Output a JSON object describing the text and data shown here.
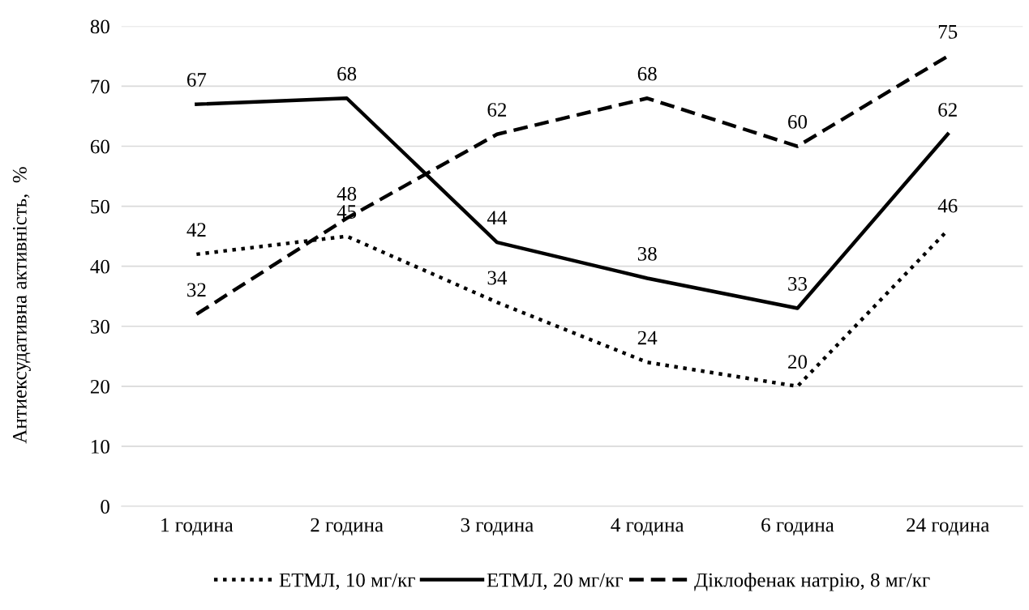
{
  "chart_data": {
    "type": "line",
    "ylabel": "Антиексудативна активність,  %",
    "categories": [
      "1 година",
      "2 година",
      "3 година",
      "4 година",
      "6 година",
      "24 година"
    ],
    "series": [
      {
        "name": "ЕТМЛ, 10 мг/кг",
        "color": "#000000",
        "line_style": "dotted",
        "values": [
          42,
          45,
          34,
          24,
          20,
          46
        ]
      },
      {
        "name": "ЕТМЛ, 20 мг/кг",
        "color": "#000000",
        "line_style": "solid",
        "values": [
          67,
          68,
          44,
          38,
          33,
          62
        ]
      },
      {
        "name": "Діклофенак натрію, 8 мг/кг",
        "color": "#000000",
        "line_style": "dashed",
        "values": [
          32,
          48,
          62,
          68,
          60,
          75
        ]
      }
    ],
    "ylim": [
      0,
      80
    ],
    "yticks": [
      0,
      10,
      20,
      30,
      40,
      50,
      60,
      70,
      80
    ],
    "grid": "y",
    "legend": "bottom",
    "data_labels": true,
    "marker": "none"
  }
}
